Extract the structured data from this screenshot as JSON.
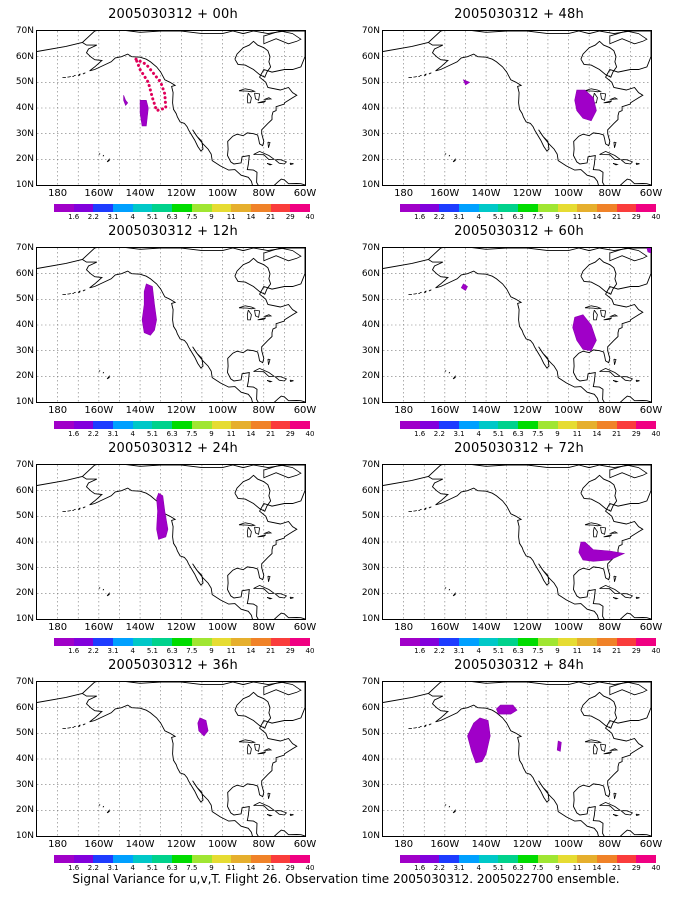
{
  "caption": "Signal Variance for u,v,T. Flight 26. Observation time 2005030312. 2005022700 ensemble.",
  "lat_labels": [
    "70N",
    "60N",
    "50N",
    "40N",
    "30N",
    "20N",
    "10N"
  ],
  "lon_labels": [
    "180",
    "160W",
    "140W",
    "120W",
    "100W",
    "80W",
    "60W"
  ],
  "colorbar": {
    "colors": [
      "#a000c8",
      "#8200dc",
      "#1e3cff",
      "#00a0ff",
      "#00c8c8",
      "#00d28c",
      "#00dc00",
      "#a0e632",
      "#e6dc32",
      "#e6af2d",
      "#f08228",
      "#fa3c3c",
      "#f00082"
    ],
    "labels": [
      "1.6",
      "2.2",
      "3.1",
      "4",
      "5.1",
      "6.3",
      "7.5",
      "9",
      "11",
      "14",
      "21",
      "29",
      "40"
    ]
  },
  "panels": [
    {
      "title": "2005030312 + 00h",
      "lead_hours": 0
    },
    {
      "title": "2005030312 + 48h",
      "lead_hours": 48
    },
    {
      "title": "2005030312 + 12h",
      "lead_hours": 12
    },
    {
      "title": "2005030312 + 60h",
      "lead_hours": 60
    },
    {
      "title": "2005030312 + 24h",
      "lead_hours": 24
    },
    {
      "title": "2005030312 + 72h",
      "lead_hours": 72
    },
    {
      "title": "2005030312 + 36h",
      "lead_hours": 36
    },
    {
      "title": "2005030312 + 84h",
      "lead_hours": 84
    }
  ],
  "map_extent": {
    "lon_min": -190,
    "lon_max": -60,
    "lat_min": 10,
    "lat_max": 70
  },
  "signal_color": "#a000c8",
  "flight_track_color": "#e0005a"
}
